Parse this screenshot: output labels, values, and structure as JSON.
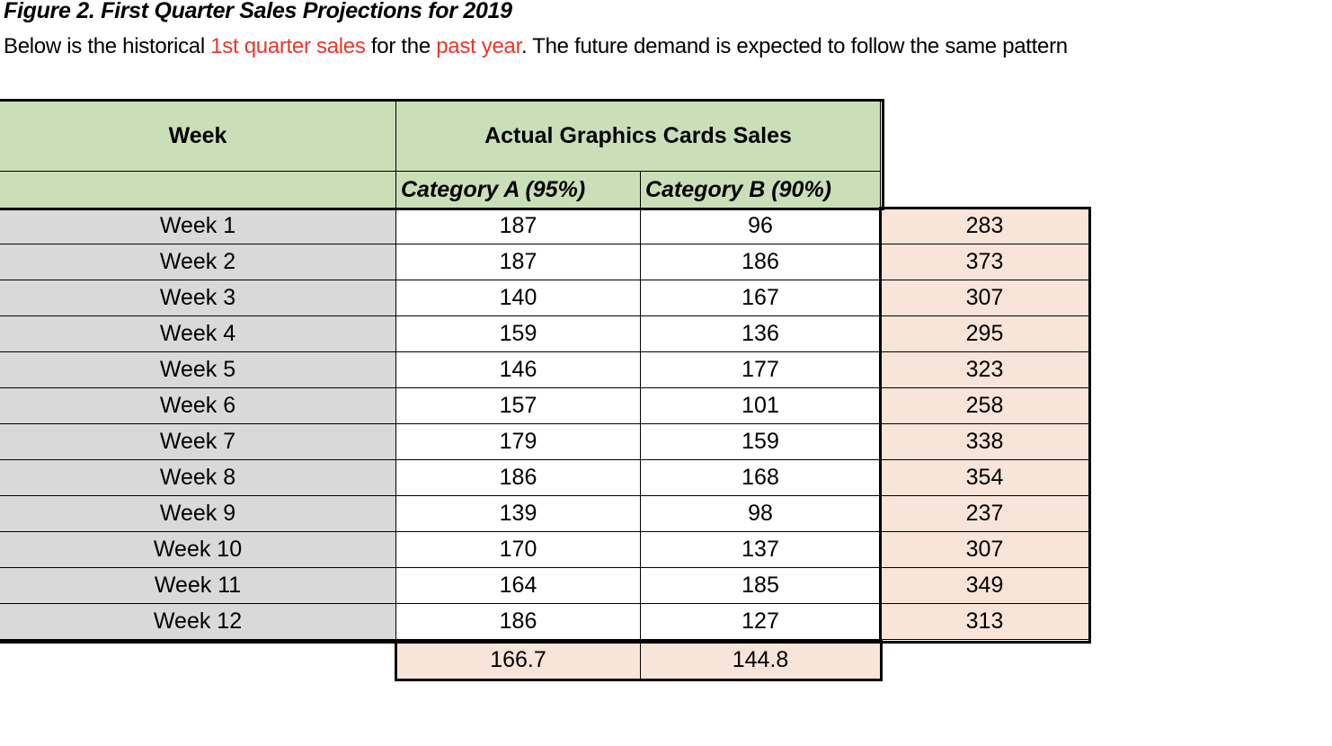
{
  "title": "Figure 2. First Quarter Sales Projections for 2019",
  "subtitle": {
    "p1": "Below is the historical ",
    "h1": "1st quarter sales",
    "p2": " for the ",
    "h2": "past year",
    "p3": ".  The future demand is expected to follow the same pattern"
  },
  "colors": {
    "header_green": "#cadfb8",
    "week_grey": "#d9d9d9",
    "total_peach": "#f8e4d8",
    "highlight_red": "#e8372a"
  },
  "table": {
    "week_header": "Week",
    "sales_header": "Actual Graphics Cards Sales",
    "cat_a_header": "Category A (95%)",
    "cat_b_header": "Category B (90%)",
    "rows": [
      {
        "week": "Week 1",
        "a": "187",
        "b": "96",
        "total": "283"
      },
      {
        "week": "Week 2",
        "a": "187",
        "b": "186",
        "total": "373"
      },
      {
        "week": "Week 3",
        "a": "140",
        "b": "167",
        "total": "307"
      },
      {
        "week": "Week 4",
        "a": "159",
        "b": "136",
        "total": "295"
      },
      {
        "week": "Week 5",
        "a": "146",
        "b": "177",
        "total": "323"
      },
      {
        "week": "Week 6",
        "a": "157",
        "b": "101",
        "total": "258"
      },
      {
        "week": "Week 7",
        "a": "179",
        "b": "159",
        "total": "338"
      },
      {
        "week": "Week 8",
        "a": "186",
        "b": "168",
        "total": "354"
      },
      {
        "week": "Week 9",
        "a": "139",
        "b": "98",
        "total": "237"
      },
      {
        "week": "Week 10",
        "a": "170",
        "b": "137",
        "total": "307"
      },
      {
        "week": "Week 11",
        "a": "164",
        "b": "185",
        "total": "349"
      },
      {
        "week": "Week 12",
        "a": "186",
        "b": "127",
        "total": "313"
      }
    ],
    "avg_a": "166.7",
    "avg_b": "144.8"
  }
}
